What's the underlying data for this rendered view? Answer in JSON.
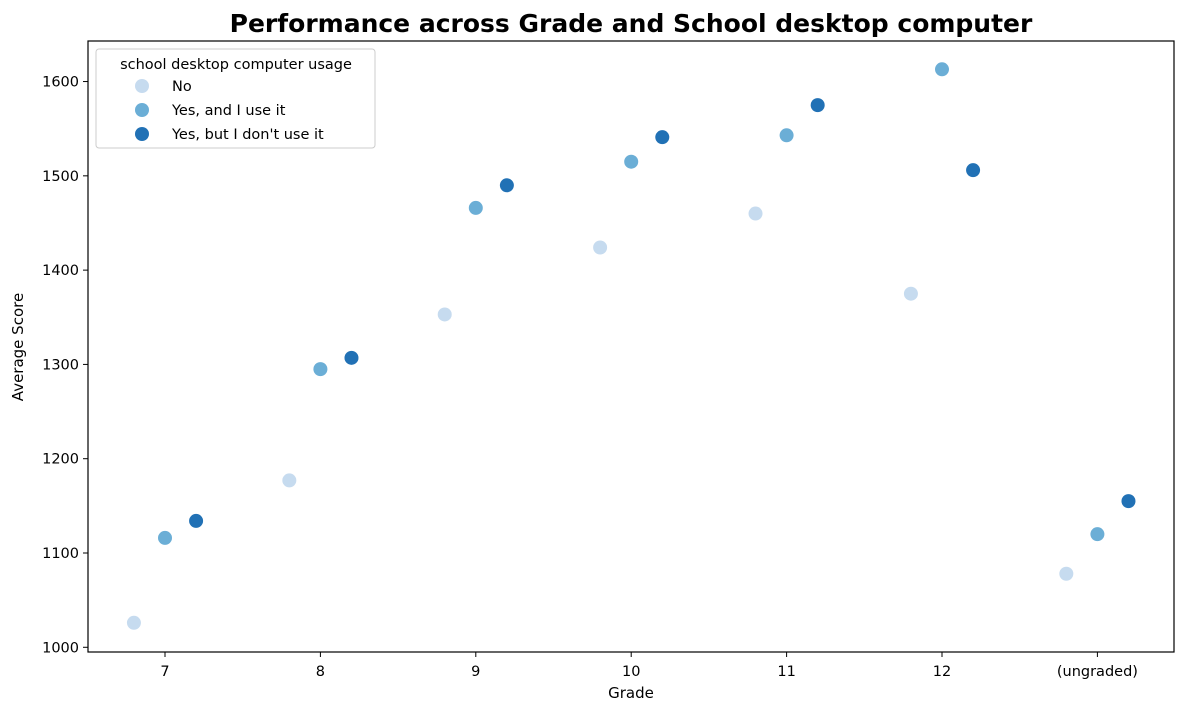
{
  "chart_data": {
    "type": "scatter",
    "title": "Performance across Grade and School desktop computer",
    "xlabel": "Grade",
    "ylabel": "Average Score",
    "categories": [
      "7",
      "8",
      "9",
      "10",
      "11",
      "12",
      "(ungraded)"
    ],
    "yticks": [
      1000,
      1100,
      1200,
      1300,
      1400,
      1500,
      1600
    ],
    "ylim": [
      995,
      1643
    ],
    "grid": false,
    "legend": {
      "title": "school desktop computer usage",
      "placement": "top-left"
    },
    "series": [
      {
        "name": "No",
        "color": "#c6dbef",
        "values": [
          1026,
          1177,
          1353,
          1424,
          1460,
          1375,
          1078
        ]
      },
      {
        "name": "Yes, and I use it",
        "color": "#6baed6",
        "values": [
          1116,
          1295,
          1466,
          1515,
          1543,
          1613,
          1120
        ]
      },
      {
        "name": "Yes, but I don't use it",
        "color": "#2171b5",
        "values": [
          1134,
          1307,
          1490,
          1541,
          1575,
          1506,
          1155
        ]
      }
    ]
  }
}
